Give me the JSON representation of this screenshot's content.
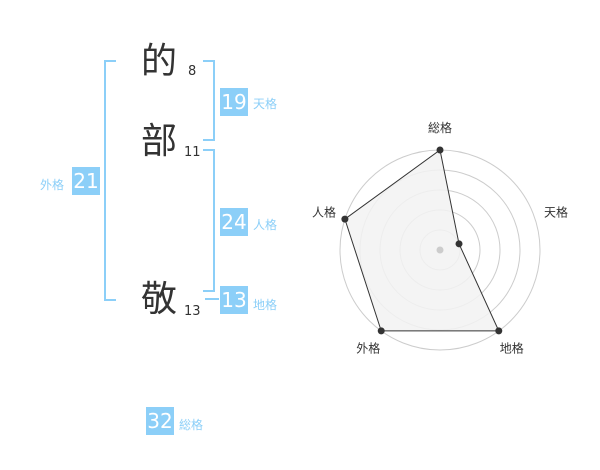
{
  "name": {
    "chars": [
      {
        "char": "的",
        "strokes": "8"
      },
      {
        "char": "部",
        "strokes": "11"
      },
      {
        "char": "敬",
        "strokes": "13"
      }
    ]
  },
  "kaku": {
    "tenkaku": {
      "value": "19",
      "label": "天格"
    },
    "jinkaku": {
      "value": "24",
      "label": "人格"
    },
    "chikaku": {
      "value": "13",
      "label": "地格"
    },
    "gaikaku": {
      "value": "21",
      "label": "外格"
    },
    "soukaku": {
      "value": "32",
      "label": "総格"
    }
  },
  "chart_data": {
    "type": "radar",
    "axes": [
      "総格",
      "天格",
      "地格",
      "外格",
      "人格"
    ],
    "values": [
      5,
      1,
      5,
      5,
      5
    ],
    "range": [
      0,
      5
    ],
    "rings": 5
  },
  "colors": {
    "accent": "#8ccff8",
    "fill": "#f2f2f2",
    "ring": "#cccccc"
  }
}
